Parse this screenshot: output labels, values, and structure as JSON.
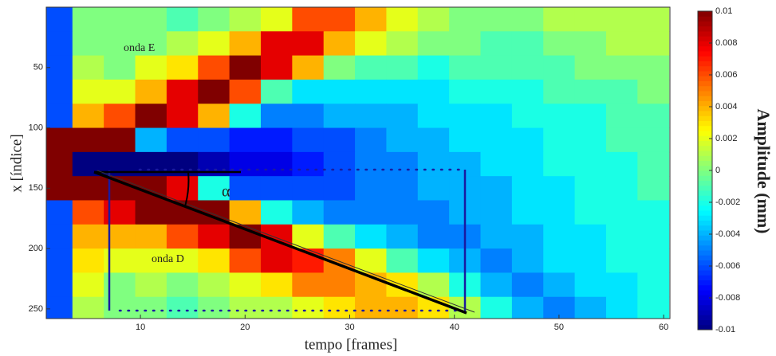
{
  "chart_data": {
    "type": "heatmap",
    "xlabel": "tempo  [frames]",
    "ylabel": "x [índice]",
    "colorbar_label": "Amplitude (mm)",
    "annotations": [
      "onda E",
      "onda D",
      "α"
    ],
    "colormap": "jet",
    "xlim": [
      1,
      60.6
    ],
    "ylim": [
      0,
      258
    ],
    "y_inverted": true,
    "xticks": [
      10,
      20,
      30,
      40,
      50,
      60
    ],
    "yticks": [
      50,
      100,
      150,
      200,
      250
    ],
    "zlim": [
      -0.01,
      0.01
    ],
    "zticks": [
      0.01,
      0.008,
      0.006,
      0.004,
      0.002,
      0,
      -0.002,
      -0.004,
      -0.006,
      -0.008,
      -0.01
    ],
    "x": [
      2,
      5,
      8,
      11,
      14,
      17,
      20,
      23,
      26,
      29,
      32,
      35,
      38,
      41,
      44,
      47,
      50,
      53,
      56,
      59
    ],
    "y": [
      10,
      30,
      50,
      70,
      90,
      110,
      130,
      150,
      170,
      190,
      210,
      230,
      250
    ],
    "z": [
      [
        -0.006,
        0,
        0,
        0,
        -0.001,
        0,
        0.001,
        0.002,
        0.006,
        0.006,
        0.004,
        0.002,
        0.001,
        0,
        0,
        0,
        0.001,
        0.001,
        0.001,
        0.001
      ],
      [
        -0.006,
        0,
        0,
        0,
        0.001,
        0.002,
        0.004,
        0.008,
        0.008,
        0.004,
        0.002,
        0.001,
        0,
        0,
        -0.001,
        -0.001,
        0,
        0,
        0.001,
        0.001
      ],
      [
        -0.006,
        0.001,
        0,
        0.002,
        0.003,
        0.006,
        0.01,
        0.008,
        0.004,
        0,
        -0.001,
        -0.001,
        -0.002,
        -0.001,
        -0.001,
        -0.001,
        -0.001,
        0,
        0,
        0
      ],
      [
        -0.006,
        0.002,
        0.002,
        0.004,
        0.008,
        0.01,
        0.006,
        -0.001,
        -0.003,
        -0.003,
        -0.003,
        -0.003,
        -0.003,
        -0.002,
        -0.002,
        -0.002,
        -0.001,
        -0.001,
        -0.001,
        0
      ],
      [
        -0.006,
        0.004,
        0.006,
        0.01,
        0.008,
        0.004,
        -0.002,
        -0.005,
        -0.005,
        -0.004,
        -0.004,
        -0.004,
        -0.003,
        -0.003,
        -0.003,
        -0.002,
        -0.002,
        -0.002,
        -0.001,
        -0.001
      ],
      [
        0.01,
        0.01,
        0.01,
        -0.004,
        -0.006,
        -0.006,
        -0.007,
        -0.007,
        -0.006,
        -0.006,
        -0.005,
        -0.004,
        -0.004,
        -0.003,
        -0.003,
        -0.003,
        -0.002,
        -0.002,
        -0.001,
        -0.001
      ],
      [
        0.01,
        -0.01,
        -0.01,
        -0.01,
        -0.01,
        -0.009,
        -0.008,
        -0.008,
        -0.007,
        -0.006,
        -0.005,
        -0.005,
        -0.004,
        -0.004,
        -0.003,
        -0.003,
        -0.002,
        -0.002,
        -0.002,
        -0.001
      ],
      [
        0.01,
        0.01,
        0.01,
        0.01,
        0.008,
        -0.002,
        -0.006,
        -0.006,
        -0.006,
        -0.006,
        -0.005,
        -0.005,
        -0.004,
        -0.004,
        -0.004,
        -0.003,
        -0.003,
        -0.002,
        -0.002,
        -0.001
      ],
      [
        -0.006,
        0.006,
        0.008,
        0.01,
        0.01,
        0.01,
        0.004,
        -0.002,
        -0.004,
        -0.005,
        -0.005,
        -0.005,
        -0.005,
        -0.004,
        -0.004,
        -0.003,
        -0.003,
        -0.002,
        -0.002,
        -0.002
      ],
      [
        -0.006,
        0.004,
        0.004,
        0.004,
        0.006,
        0.008,
        0.01,
        0.008,
        0.002,
        -0.001,
        -0.003,
        -0.004,
        -0.005,
        -0.005,
        -0.004,
        -0.004,
        -0.003,
        -0.003,
        -0.002,
        -0.002
      ],
      [
        -0.006,
        0.003,
        0.002,
        0.002,
        0.002,
        0.003,
        0.006,
        0.008,
        0.007,
        0.005,
        0.002,
        -0.001,
        -0.003,
        -0.004,
        -0.005,
        -0.004,
        -0.003,
        -0.003,
        -0.002,
        -0.002
      ],
      [
        -0.006,
        0.002,
        0,
        0.001,
        0,
        0.001,
        0.002,
        0.003,
        0.005,
        0.005,
        0.004,
        0.003,
        0.001,
        -0.002,
        -0.004,
        -0.005,
        -0.004,
        -0.003,
        -0.003,
        -0.002
      ],
      [
        -0.006,
        0.001,
        0,
        0,
        -0.001,
        0,
        0.001,
        0.001,
        0.002,
        0.003,
        0.004,
        0.004,
        0.003,
        0.001,
        -0.002,
        -0.004,
        -0.005,
        -0.004,
        -0.003,
        -0.002
      ]
    ]
  }
}
